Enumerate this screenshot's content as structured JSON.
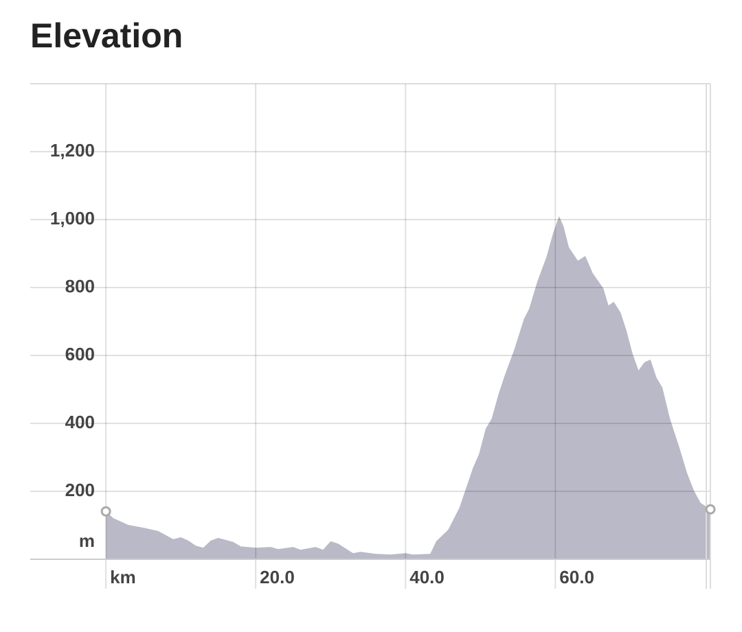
{
  "chart_data": {
    "type": "area",
    "title": "Elevation",
    "y_label": "m",
    "x": [
      0,
      1,
      2,
      3,
      5,
      7,
      8,
      9,
      10,
      11,
      12,
      13,
      14,
      15,
      17,
      18,
      20,
      22,
      23,
      25,
      26,
      28,
      29,
      30,
      31,
      33,
      34,
      36,
      38,
      40,
      41,
      43.3,
      44.1,
      45.7,
      47.2,
      49.0,
      49.8,
      50.7,
      51.5,
      52.4,
      53.3,
      54.5,
      55.8,
      56.5,
      57.6,
      58.8,
      59.7,
      60.5,
      61.1,
      61.8,
      63.0,
      64.0,
      65.0,
      66.4,
      67.1,
      67.8,
      68.7,
      69.5,
      70.3,
      71.1,
      71.9,
      72.7,
      73.5,
      74.3,
      75.3,
      76.5,
      77.6,
      78.5,
      79.4,
      80.7
    ],
    "values": [
      141,
      121,
      111,
      101,
      93,
      83,
      71,
      59,
      65,
      55,
      40,
      34,
      55,
      63,
      51,
      38,
      34,
      36,
      30,
      36,
      28,
      36,
      28,
      53,
      46,
      18,
      22,
      16,
      14,
      18,
      14,
      16,
      53,
      87,
      152,
      269,
      309,
      384,
      414,
      485,
      545,
      616,
      707,
      737,
      818,
      889,
      960,
      1010,
      980,
      919,
      879,
      893,
      842,
      798,
      747,
      758,
      727,
      673,
      606,
      556,
      580,
      588,
      535,
      505,
      414,
      333,
      253,
      202,
      166,
      147
    ],
    "color": "#b9b9c7",
    "xlim": [
      -10.1,
      80.7
    ],
    "xticks": [
      {
        "value": 0,
        "label": "km"
      },
      {
        "value": 20,
        "label": "20.0"
      },
      {
        "value": 40,
        "label": "40.0"
      },
      {
        "value": 60,
        "label": "60.0"
      }
    ],
    "ylim": [
      0,
      1400
    ],
    "yticks": [
      200,
      400,
      600,
      800,
      {
        "value": 1000,
        "label": "1,000"
      },
      {
        "value": 1200,
        "label": "1,200"
      }
    ],
    "grid": true
  }
}
